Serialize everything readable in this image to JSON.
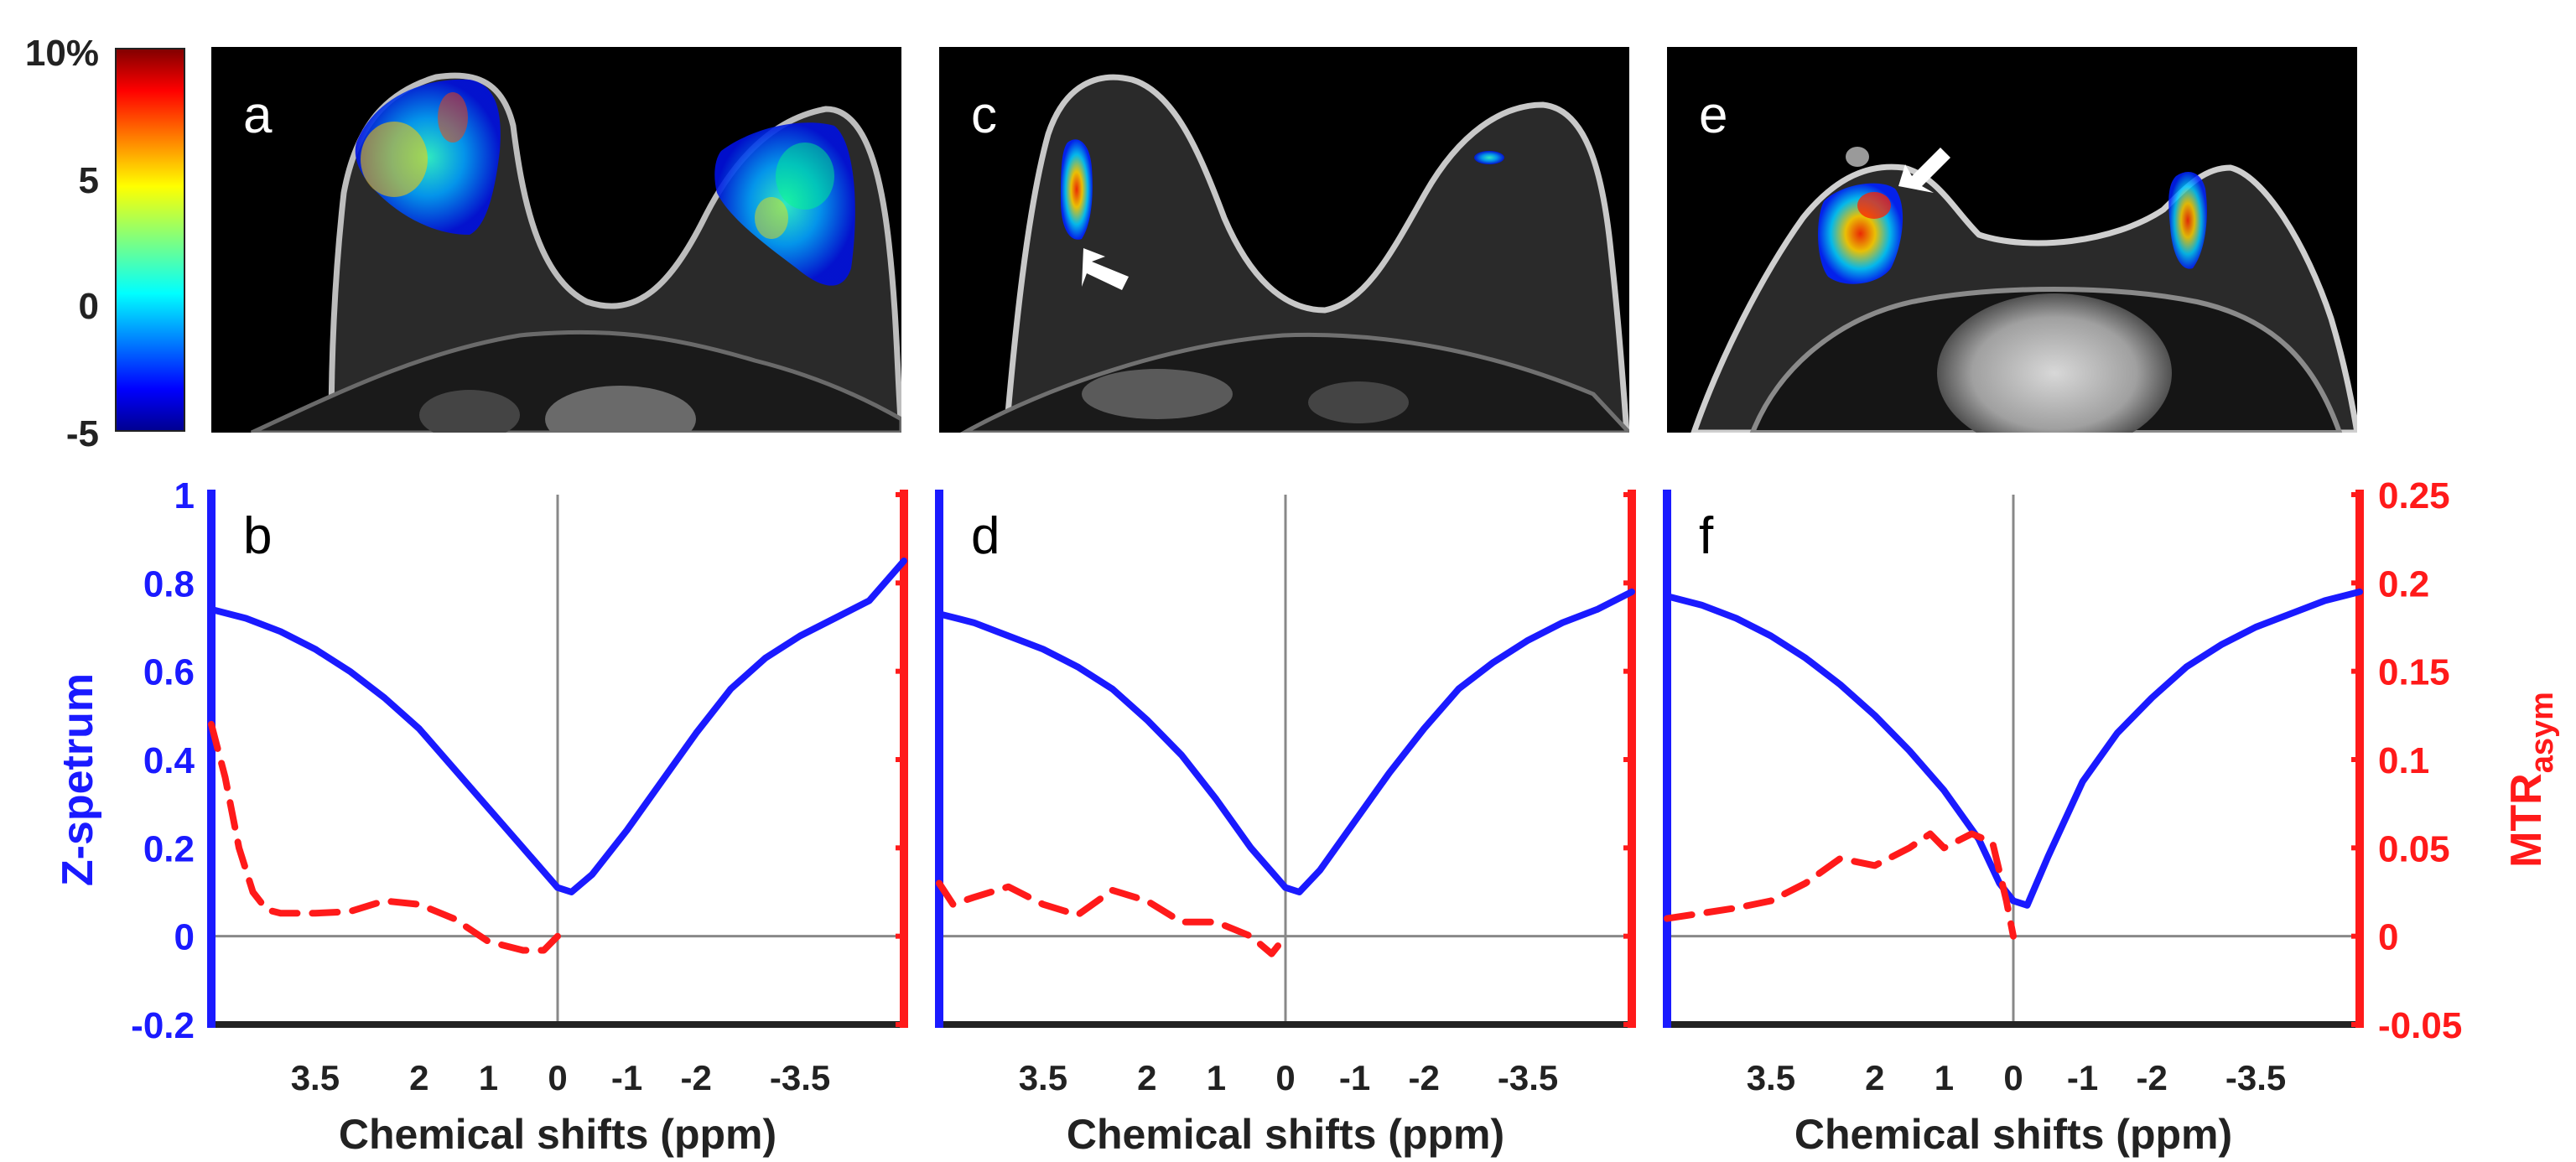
{
  "colorbar": {
    "ticks": [
      "10%",
      "5",
      "0",
      "-5"
    ],
    "values": [
      10,
      5,
      0,
      -5
    ]
  },
  "image_panels": [
    {
      "letter": "a",
      "arrow": false
    },
    {
      "letter": "c",
      "arrow": true,
      "arrow_direction": "up-left"
    },
    {
      "letter": "e",
      "arrow": true,
      "arrow_direction": "down-left"
    }
  ],
  "chart_data": [
    {
      "type": "line",
      "panel": "b",
      "xlabel": "Chemical shifts (ppm)",
      "x_ticks": [
        "3.5",
        "2",
        "1",
        "0",
        "-1",
        "-2",
        "-3.5"
      ],
      "x_tick_values": [
        3.5,
        2,
        1,
        0,
        -1,
        -2,
        -3.5
      ],
      "xlim": [
        5,
        -5
      ],
      "ylabel_left": "Z-spetrum",
      "ylim_left": [
        -0.2,
        1
      ],
      "y_ticks_left": [
        "1",
        "0.8",
        "0.6",
        "0.4",
        "0.2",
        "0",
        "-0.2"
      ],
      "ylabel_right": "MTRasym",
      "ylim_right": [
        -0.05,
        0.25
      ],
      "y_ticks_right": [
        "0.25",
        "0.2",
        "0.15",
        "0.1",
        "0.05",
        "0",
        "-0.05"
      ],
      "series": [
        {
          "axis": "left",
          "color": "#1a1aff",
          "style": "solid",
          "x": [
            5,
            4.5,
            4,
            3.5,
            3,
            2.5,
            2,
            1.5,
            1,
            0.5,
            0,
            -0.2,
            -0.5,
            -1,
            -1.5,
            -2,
            -2.5,
            -3,
            -3.5,
            -4,
            -4.5,
            -5
          ],
          "y": [
            0.74,
            0.72,
            0.69,
            0.65,
            0.6,
            0.54,
            0.47,
            0.38,
            0.29,
            0.2,
            0.11,
            0.1,
            0.14,
            0.24,
            0.35,
            0.46,
            0.56,
            0.63,
            0.68,
            0.72,
            0.76,
            0.85
          ]
        },
        {
          "axis": "right",
          "color": "#ff1a1a",
          "style": "dashed",
          "x": [
            5,
            4.8,
            4.6,
            4.4,
            4.2,
            4,
            3.5,
            3,
            2.5,
            2,
            1.5,
            1,
            0.5,
            0.2,
            0
          ],
          "y": [
            0.12,
            0.09,
            0.05,
            0.025,
            0.015,
            0.013,
            0.013,
            0.014,
            0.02,
            0.018,
            0.01,
            -0.003,
            -0.008,
            -0.008,
            0.0
          ]
        }
      ]
    },
    {
      "type": "line",
      "panel": "d",
      "xlabel": "Chemical shifts (ppm)",
      "x_ticks": [
        "3.5",
        "2",
        "1",
        "0",
        "-1",
        "-2",
        "-3.5"
      ],
      "x_tick_values": [
        3.5,
        2,
        1,
        0,
        -1,
        -2,
        -3.5
      ],
      "xlim": [
        5,
        -5
      ],
      "ylim_left": [
        -0.2,
        1
      ],
      "ylim_right": [
        -0.05,
        0.25
      ],
      "series": [
        {
          "axis": "left",
          "color": "#1a1aff",
          "style": "solid",
          "x": [
            5,
            4.5,
            4,
            3.5,
            3,
            2.5,
            2,
            1.5,
            1,
            0.5,
            0,
            -0.2,
            -0.5,
            -1,
            -1.5,
            -2,
            -2.5,
            -3,
            -3.5,
            -4,
            -4.5,
            -5
          ],
          "y": [
            0.73,
            0.71,
            0.68,
            0.65,
            0.61,
            0.56,
            0.49,
            0.41,
            0.31,
            0.2,
            0.11,
            0.1,
            0.15,
            0.26,
            0.37,
            0.47,
            0.56,
            0.62,
            0.67,
            0.71,
            0.74,
            0.78
          ]
        },
        {
          "axis": "right",
          "color": "#ff1a1a",
          "style": "dashed",
          "x": [
            5,
            4.8,
            4.5,
            4,
            3.5,
            3,
            2.5,
            2,
            1.5,
            1,
            0.5,
            0.2,
            0
          ],
          "y": [
            0.03,
            0.018,
            0.022,
            0.028,
            0.018,
            0.012,
            0.026,
            0.02,
            0.008,
            0.008,
            0.0,
            -0.01,
            0.0
          ]
        }
      ]
    },
    {
      "type": "line",
      "panel": "f",
      "xlabel": "Chemical shifts (ppm)",
      "x_ticks": [
        "3.5",
        "2",
        "1",
        "0",
        "-1",
        "-2",
        "-3.5"
      ],
      "x_tick_values": [
        3.5,
        2,
        1,
        0,
        -1,
        -2,
        -3.5
      ],
      "xlim": [
        5,
        -5
      ],
      "ylim_left": [
        -0.2,
        1
      ],
      "ylabel_right": "MTRasym",
      "ylim_right": [
        -0.05,
        0.25
      ],
      "y_ticks_right": [
        "0.25",
        "0.2",
        "0.15",
        "0.1",
        "0.05",
        "0",
        "-0.05"
      ],
      "series": [
        {
          "axis": "left",
          "color": "#1a1aff",
          "style": "solid",
          "x": [
            5,
            4.5,
            4,
            3.5,
            3,
            2.5,
            2,
            1.5,
            1,
            0.5,
            0.2,
            0,
            -0.2,
            -0.5,
            -1,
            -1.5,
            -2,
            -2.5,
            -3,
            -3.5,
            -4,
            -4.5,
            -5
          ],
          "y": [
            0.77,
            0.75,
            0.72,
            0.68,
            0.63,
            0.57,
            0.5,
            0.42,
            0.33,
            0.22,
            0.12,
            0.08,
            0.07,
            0.18,
            0.35,
            0.46,
            0.54,
            0.61,
            0.66,
            0.7,
            0.73,
            0.76,
            0.78
          ]
        },
        {
          "axis": "right",
          "color": "#ff1a1a",
          "style": "dashed",
          "x": [
            5,
            4.5,
            4,
            3.5,
            3,
            2.5,
            2,
            1.5,
            1.2,
            1,
            0.6,
            0.3,
            0.1,
            0
          ],
          "y": [
            0.01,
            0.013,
            0.016,
            0.02,
            0.03,
            0.044,
            0.04,
            0.05,
            0.058,
            0.05,
            0.058,
            0.053,
            0.02,
            0.0
          ]
        }
      ]
    }
  ]
}
